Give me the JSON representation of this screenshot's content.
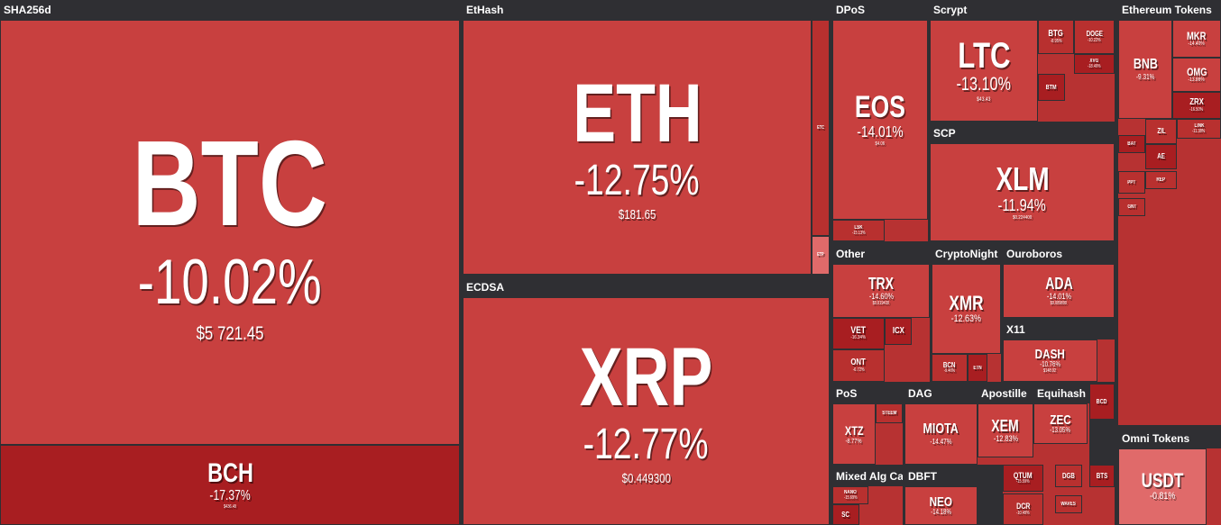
{
  "groups": [
    {
      "title": "SHA256d",
      "tiles": [
        {
          "name": "BTC",
          "change": "-10.02%",
          "price": "$5 721.45"
        },
        {
          "name": "BCH",
          "change": "-17.37%",
          "price": "$436.49"
        }
      ]
    },
    {
      "title": "EtHash",
      "tiles": [
        {
          "name": "ETH",
          "change": "-12.75%",
          "price": "$181.65"
        },
        {
          "name": "ETC"
        },
        {
          "name": "ETP"
        }
      ]
    },
    {
      "title": "ECDSA",
      "tiles": [
        {
          "name": "XRP",
          "change": "-12.77%",
          "price": "$0.449300"
        }
      ]
    },
    {
      "title": "DPoS",
      "tiles": [
        {
          "name": "EOS",
          "change": "-14.01%",
          "price": "$4.06"
        },
        {
          "name": "LSK",
          "change": "-15.13%"
        }
      ]
    },
    {
      "title": "Scrypt",
      "tiles": [
        {
          "name": "LTC",
          "change": "-13.10%",
          "price": "$43.43"
        },
        {
          "name": "BTG",
          "change": "-8.95%"
        },
        {
          "name": "DOGE",
          "change": "-10.22%"
        },
        {
          "name": "XVG",
          "change": "-18.49%"
        },
        {
          "name": "BTM"
        }
      ]
    },
    {
      "title": "SCP",
      "tiles": [
        {
          "name": "XLM",
          "change": "-11.94%",
          "price": "$0.224400"
        }
      ]
    },
    {
      "title": "Other",
      "tiles": [
        {
          "name": "TRX",
          "change": "-14.60%",
          "price": "$0.019430"
        },
        {
          "name": "VET",
          "change": "-16.34%"
        },
        {
          "name": "ICX"
        },
        {
          "name": "ONT",
          "change": "-6.72%"
        }
      ]
    },
    {
      "title": "CryptoNight",
      "tiles": [
        {
          "name": "XMR",
          "change": "-12.63%"
        },
        {
          "name": "BCN",
          "change": "-9.46%"
        },
        {
          "name": "ETN"
        }
      ]
    },
    {
      "title": "Ouroboros",
      "tiles": [
        {
          "name": "ADA",
          "change": "-14.01%",
          "price": "$0.089890"
        }
      ]
    },
    {
      "title": "X11",
      "tiles": [
        {
          "name": "DASH",
          "change": "-10.76%",
          "price": "$148.02"
        }
      ]
    },
    {
      "title": "PoS",
      "tiles": [
        {
          "name": "XTZ",
          "change": "-8.77%"
        },
        {
          "name": "STEEM"
        }
      ]
    },
    {
      "title": "DAG",
      "tiles": [
        {
          "name": "MIOTA",
          "change": "-14.47%"
        }
      ]
    },
    {
      "title": "Apostille",
      "tiles": [
        {
          "name": "XEM",
          "change": "-12.83%"
        }
      ]
    },
    {
      "title": "Equihash",
      "tiles": [
        {
          "name": "ZEC",
          "change": "-13.05%"
        },
        {
          "name": "BCD"
        }
      ]
    },
    {
      "title": "Mixed Alg Ca...",
      "tiles": [
        {
          "name": "NANO",
          "change": "-15.69%"
        },
        {
          "name": "SC"
        }
      ]
    },
    {
      "title": "DBFT",
      "tiles": [
        {
          "name": "NEO",
          "change": "-14.18%"
        }
      ]
    },
    {
      "tiles": [
        {
          "name": "QTUM",
          "change": "-15.59%"
        },
        {
          "name": "DCR",
          "change": "-10.49%"
        },
        {
          "name": "DGB"
        },
        {
          "name": "BTS"
        },
        {
          "name": "WAVES"
        }
      ]
    },
    {
      "title": "Ethereum Tokens",
      "tiles": [
        {
          "name": "BNB",
          "change": "-9.31%"
        },
        {
          "name": "MKR",
          "change": "-14.40%"
        },
        {
          "name": "OMG",
          "change": "-13.86%"
        },
        {
          "name": "ZRX",
          "change": "-16.50%"
        },
        {
          "name": "LINK",
          "change": "-11.38%"
        },
        {
          "name": "ZIL"
        },
        {
          "name": "AE"
        },
        {
          "name": "BAT"
        },
        {
          "name": "PPT"
        },
        {
          "name": "REP"
        },
        {
          "name": "GNT"
        }
      ]
    },
    {
      "title": "Omni Tokens",
      "tiles": [
        {
          "name": "USDT",
          "change": "-0.81%"
        }
      ]
    }
  ]
}
